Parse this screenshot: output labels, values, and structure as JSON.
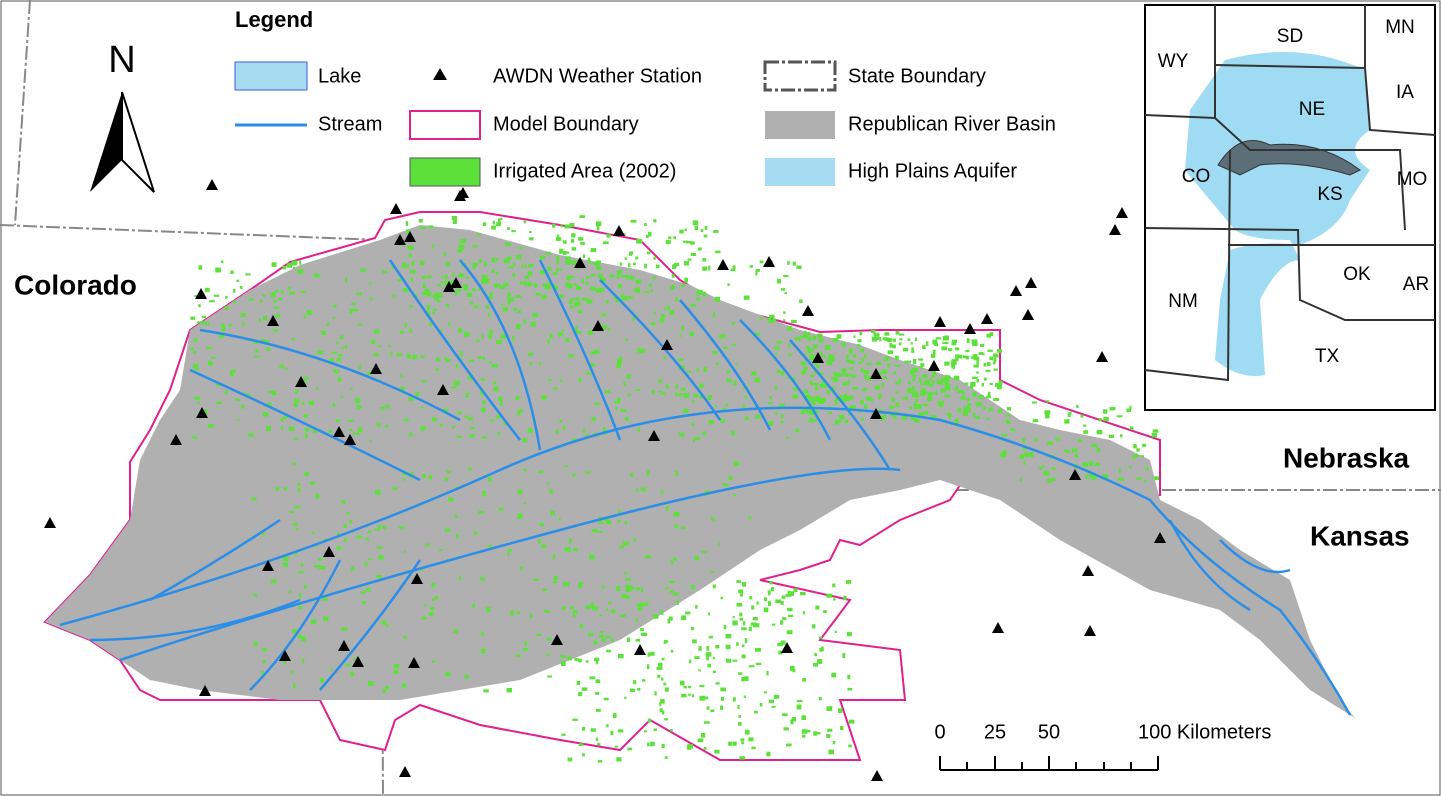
{
  "legend": {
    "title": "Legend",
    "items": [
      "Lake",
      "AWDN Weather Station",
      "State Boundary",
      "Stream",
      "Model Boundary",
      "Republican River Basin",
      "Irrigated Area (2002)",
      "High Plains Aquifer"
    ]
  },
  "north_arrow": "N",
  "states": [
    "Colorado",
    "Nebraska",
    "Kansas"
  ],
  "inset": {
    "labels": [
      "WY",
      "SD",
      "MN",
      "IA",
      "NE",
      "CO",
      "KS",
      "MO",
      "NM",
      "OK",
      "AR",
      "TX"
    ]
  },
  "scale_bar": {
    "labels": [
      "0",
      "25",
      "50",
      "100 Kilometers"
    ]
  }
}
